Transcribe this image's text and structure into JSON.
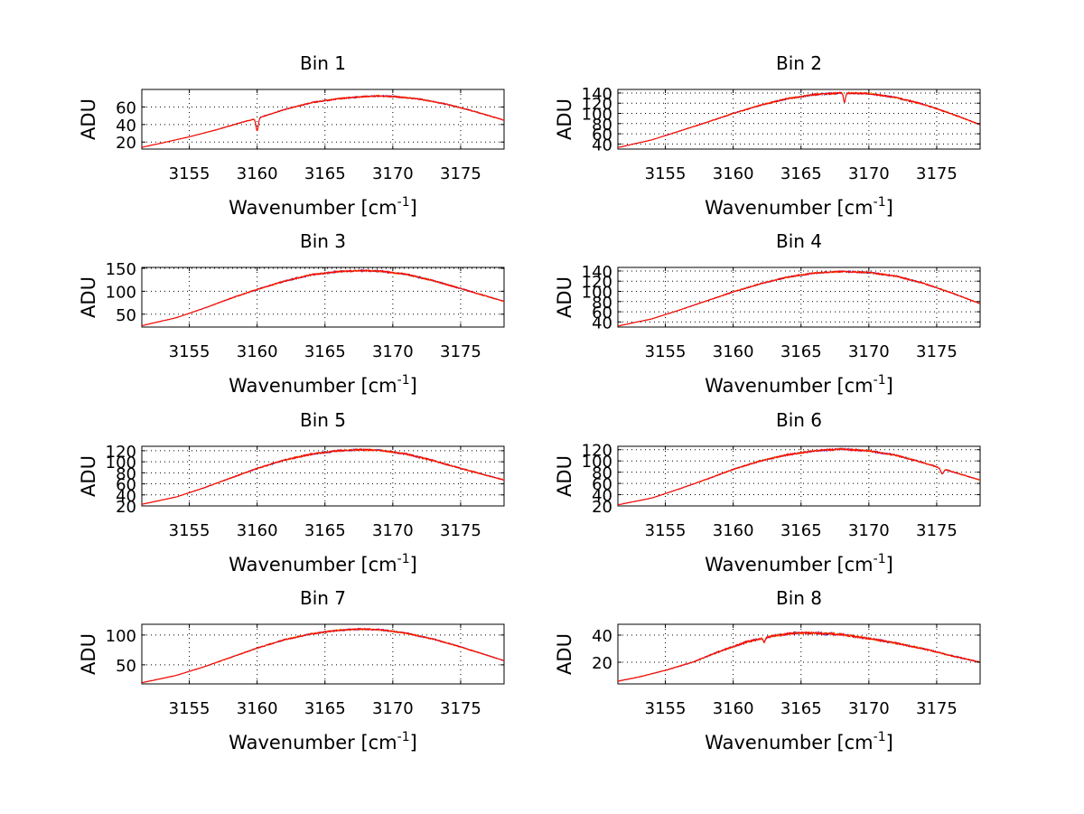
{
  "figure": {
    "background": "#ffffff",
    "series_colors": [
      "#ff0000",
      "#ffa500",
      "#0000ff"
    ]
  },
  "chart_data": [
    {
      "type": "line",
      "title": "Bin 1",
      "xlabel": "Wavenumber [cm",
      "xlabel_sup": "-1",
      "xlabel_close": "]",
      "ylabel": "ADU",
      "xlim": [
        3151.5,
        3178.2
      ],
      "ylim": [
        12,
        80
      ],
      "xticks": [
        3155,
        3160,
        3165,
        3170,
        3175
      ],
      "yticks": [
        20,
        40,
        60
      ],
      "grid": true,
      "profile": {
        "x": [
          3151.5,
          3153,
          3155,
          3157,
          3159,
          3160,
          3162,
          3164,
          3166,
          3168,
          3169,
          3170,
          3172,
          3174,
          3176,
          3178.2
        ],
        "y": [
          14,
          19,
          26,
          34,
          43,
          47,
          57,
          65,
          69.5,
          72,
          72.5,
          72,
          69,
          63,
          55,
          45
        ]
      },
      "dips": [
        {
          "x": 3160.0,
          "depth": 14,
          "width": 0.12
        }
      ],
      "noise": 0.8
    },
    {
      "type": "line",
      "title": "Bin 2",
      "xlabel": "Wavenumber [cm",
      "xlabel_sup": "-1",
      "xlabel_close": "]",
      "ylabel": "ADU",
      "xlim": [
        3151.5,
        3178.2
      ],
      "ylim": [
        30,
        147
      ],
      "xticks": [
        3155,
        3160,
        3165,
        3170,
        3175
      ],
      "yticks": [
        40,
        60,
        80,
        100,
        120,
        140
      ],
      "grid": true,
      "profile": {
        "x": [
          3151.5,
          3154,
          3156,
          3158,
          3160,
          3162,
          3164,
          3166,
          3168,
          3170,
          3172,
          3174,
          3176,
          3178.2
        ],
        "y": [
          33,
          48,
          65,
          82,
          100,
          116,
          129,
          137,
          140,
          139,
          131,
          118,
          100,
          78
        ]
      },
      "dips": [
        {
          "x": 3168.2,
          "depth": 18,
          "width": 0.1
        }
      ],
      "noise": 1.6
    },
    {
      "type": "line",
      "title": "Bin 3",
      "xlabel": "Wavenumber [cm",
      "xlabel_sup": "-1",
      "xlabel_close": "]",
      "ylabel": "ADU",
      "xlim": [
        3151.5,
        3178.2
      ],
      "ylim": [
        22,
        152
      ],
      "xticks": [
        3155,
        3160,
        3165,
        3170,
        3175
      ],
      "yticks": [
        50,
        100,
        150
      ],
      "grid": true,
      "profile": {
        "x": [
          3151.5,
          3154,
          3156,
          3158,
          3160,
          3162,
          3164,
          3166,
          3167.5,
          3169,
          3171,
          3173,
          3175,
          3178.2
        ],
        "y": [
          25,
          42,
          62,
          84,
          104,
          122,
          136,
          143,
          145,
          144,
          137,
          123,
          106,
          78
        ]
      },
      "dips": [],
      "noise": 1.8
    },
    {
      "type": "line",
      "title": "Bin 4",
      "xlabel": "Wavenumber [cm",
      "xlabel_sup": "-1",
      "xlabel_close": "]",
      "ylabel": "ADU",
      "xlim": [
        3151.5,
        3178.2
      ],
      "ylim": [
        30,
        147
      ],
      "xticks": [
        3155,
        3160,
        3165,
        3170,
        3175
      ],
      "yticks": [
        40,
        60,
        80,
        100,
        120,
        140
      ],
      "grid": true,
      "profile": {
        "x": [
          3151.5,
          3154,
          3156,
          3158,
          3160,
          3162,
          3164,
          3166,
          3168,
          3170,
          3172,
          3174,
          3176,
          3178.2
        ],
        "y": [
          32,
          46,
          63,
          81,
          99,
          115,
          128,
          136,
          139,
          137,
          130,
          116,
          98,
          76
        ]
      },
      "dips": [],
      "noise": 1.5
    },
    {
      "type": "line",
      "title": "Bin 5",
      "xlabel": "Wavenumber [cm",
      "xlabel_sup": "-1",
      "xlabel_close": "]",
      "ylabel": "ADU",
      "xlim": [
        3151.5,
        3178.2
      ],
      "ylim": [
        20,
        128
      ],
      "xticks": [
        3155,
        3160,
        3165,
        3170,
        3175
      ],
      "yticks": [
        20,
        40,
        60,
        80,
        100,
        120
      ],
      "grid": true,
      "profile": {
        "x": [
          3151.5,
          3154,
          3156,
          3158,
          3160,
          3162,
          3164,
          3166,
          3167.5,
          3169,
          3171,
          3173,
          3175,
          3178.2
        ],
        "y": [
          23,
          36,
          52,
          70,
          88,
          103,
          114,
          120,
          122,
          121,
          114,
          102,
          88,
          67
        ]
      },
      "dips": [],
      "noise": 1.6
    },
    {
      "type": "line",
      "title": "Bin 6",
      "xlabel": "Wavenumber [cm",
      "xlabel_sup": "-1",
      "xlabel_close": "]",
      "ylabel": "ADU",
      "xlim": [
        3151.5,
        3178.2
      ],
      "ylim": [
        20,
        126
      ],
      "xticks": [
        3155,
        3160,
        3165,
        3170,
        3175
      ],
      "yticks": [
        20,
        40,
        60,
        80,
        100,
        120
      ],
      "grid": true,
      "profile": {
        "x": [
          3151.5,
          3154,
          3156,
          3158,
          3160,
          3162,
          3164,
          3166,
          3168,
          3170,
          3172,
          3174,
          3176,
          3178.2
        ],
        "y": [
          22,
          34,
          50,
          67,
          85,
          100,
          111,
          118,
          121,
          118,
          110,
          97,
          82,
          66
        ]
      },
      "dips": [
        {
          "x": 3175.4,
          "depth": 9,
          "width": 0.15
        }
      ],
      "noise": 1.5
    },
    {
      "type": "line",
      "title": "Bin 7",
      "xlabel": "Wavenumber [cm",
      "xlabel_sup": "-1",
      "xlabel_close": "]",
      "ylabel": "ADU",
      "xlim": [
        3151.5,
        3178.2
      ],
      "ylim": [
        18,
        118
      ],
      "xticks": [
        3155,
        3160,
        3165,
        3170,
        3175
      ],
      "yticks": [
        50,
        100
      ],
      "grid": true,
      "profile": {
        "x": [
          3151.5,
          3154,
          3156,
          3158,
          3160,
          3162,
          3164,
          3166,
          3167.5,
          3169,
          3171,
          3173,
          3175,
          3178.2
        ],
        "y": [
          20,
          32,
          46,
          62,
          78,
          92,
          102,
          108,
          110,
          109,
          103,
          93,
          80,
          57
        ]
      },
      "dips": [],
      "noise": 1.3
    },
    {
      "type": "line",
      "title": "Bin 8",
      "xlabel": "Wavenumber [cm",
      "xlabel_sup": "-1",
      "xlabel_close": "]",
      "ylabel": "ADU",
      "xlim": [
        3151.5,
        3178.2
      ],
      "ylim": [
        4,
        48
      ],
      "xticks": [
        3155,
        3160,
        3165,
        3170,
        3175
      ],
      "yticks": [
        20,
        40
      ],
      "grid": true,
      "profile": {
        "x": [
          3151.5,
          3153,
          3155,
          3157,
          3159,
          3161,
          3163,
          3164.5,
          3166,
          3168,
          3170,
          3172,
          3174,
          3176,
          3178.2
        ],
        "y": [
          6,
          9,
          14,
          20,
          28,
          35,
          39.5,
          41.5,
          41.5,
          40.5,
          37.5,
          34,
          30,
          25,
          20
        ]
      },
      "dips": [
        {
          "x": 3162.3,
          "depth": 3,
          "width": 0.1
        }
      ],
      "noise": 0.9
    }
  ]
}
